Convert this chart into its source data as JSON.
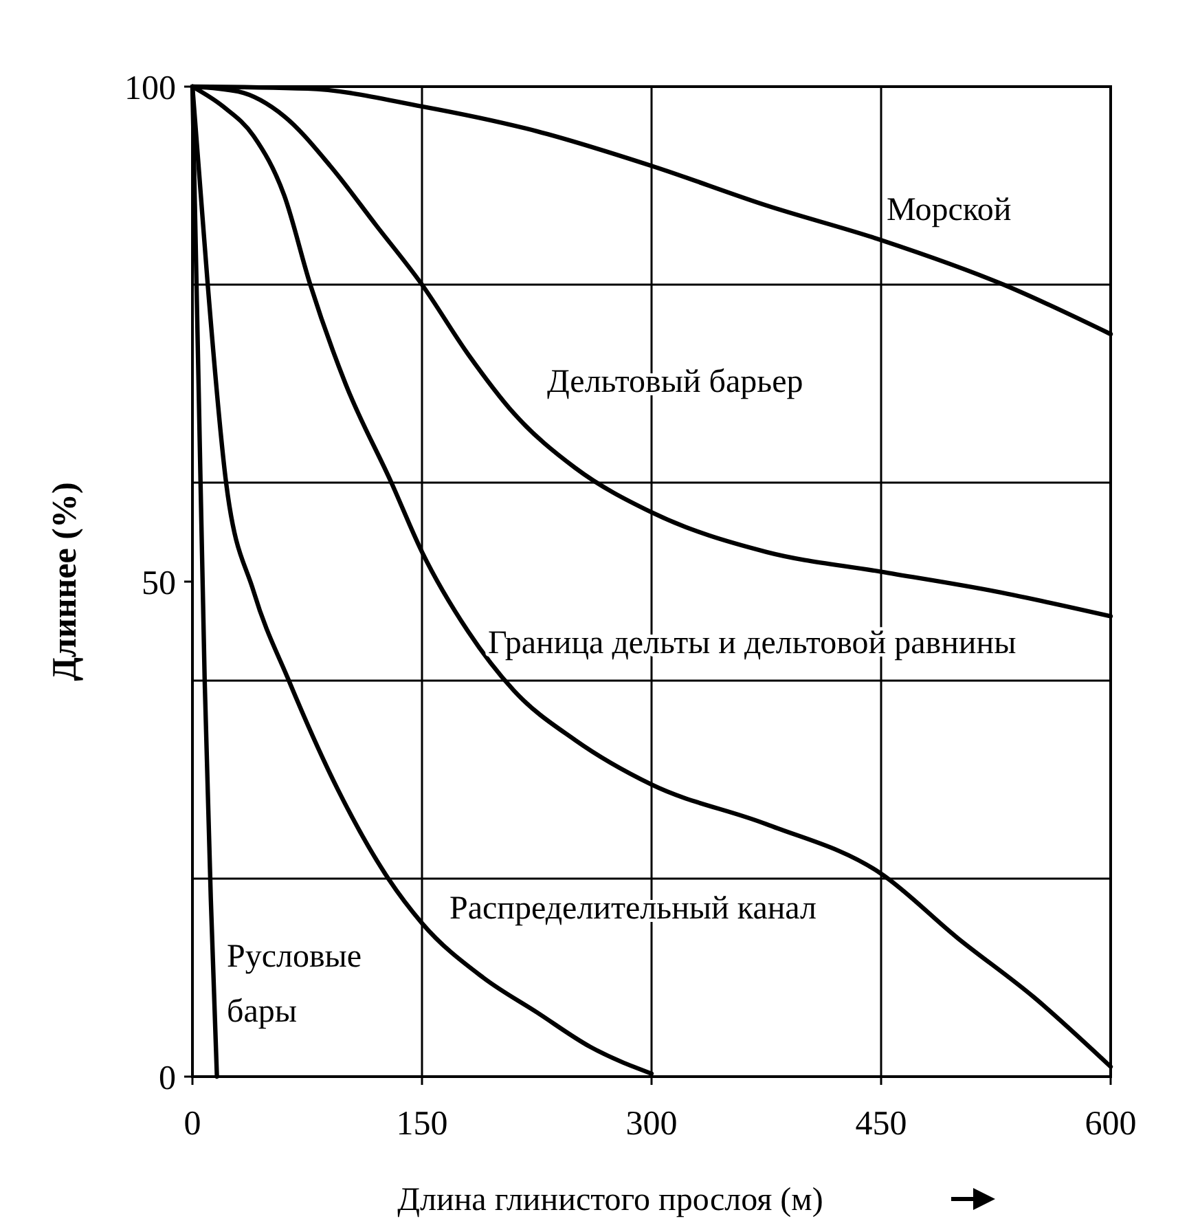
{
  "chart_data": {
    "type": "line",
    "xlabel": "Длина глинистого прослоя (м)",
    "ylabel": "Длиннее (%)",
    "xlim": [
      0,
      600
    ],
    "ylim": [
      0,
      100
    ],
    "xticks": [
      0,
      150,
      300,
      450,
      600
    ],
    "yticks": [
      0,
      50,
      100
    ],
    "grid": "x",
    "marker": "none",
    "line_style": "solid",
    "ref_lines": [
      {
        "axis": "y",
        "value": 20,
        "color": "#000000"
      },
      {
        "axis": "y",
        "value": 40,
        "color": "#000000"
      },
      {
        "axis": "y",
        "value": 60,
        "color": "#000000"
      },
      {
        "axis": "y",
        "value": 80,
        "color": "#000000"
      }
    ],
    "series": [
      {
        "name": "Морской",
        "color": "#000000",
        "x": [
          0,
          75,
          150,
          225,
          300,
          375,
          450,
          530,
          600
        ],
        "values": [
          100,
          99.8,
          98,
          95.5,
          92,
          88,
          84.5,
          80,
          75
        ]
      },
      {
        "name": "Дельтовый барьер",
        "color": "#000000",
        "x": [
          0,
          30,
          60,
          90,
          120,
          150,
          180,
          210,
          250,
          300,
          375,
          450,
          525,
          600
        ],
        "values": [
          100,
          99.5,
          97,
          92,
          86,
          80,
          73,
          67,
          61.5,
          57,
          53,
          51,
          49,
          46.5
        ]
      },
      {
        "name": "Граница дельты и дельтовой равнины",
        "color": "#000000",
        "x": [
          0,
          20,
          40,
          60,
          77,
          100,
          130,
          150,
          180,
          210,
          250,
          300,
          375,
          450,
          500,
          550,
          600
        ],
        "values": [
          100,
          98,
          95,
          89,
          80,
          70,
          60,
          53,
          45,
          39,
          34,
          29.5,
          25.5,
          20.5,
          14,
          8,
          1
        ]
      },
      {
        "name": "Распределительный канал",
        "color": "#000000",
        "x": [
          0,
          5,
          10,
          22,
          40,
          63,
          95,
          128,
          150,
          190,
          225,
          260,
          300
        ],
        "values": [
          100,
          90,
          80,
          60,
          49,
          40,
          29,
          20,
          15.5,
          10,
          6.5,
          3,
          0.3
        ]
      },
      {
        "name": "Русловые бары",
        "color": "#000000",
        "x": [
          0,
          4,
          8,
          12,
          16
        ],
        "values": [
          100,
          70,
          40,
          18,
          0
        ]
      }
    ]
  }
}
